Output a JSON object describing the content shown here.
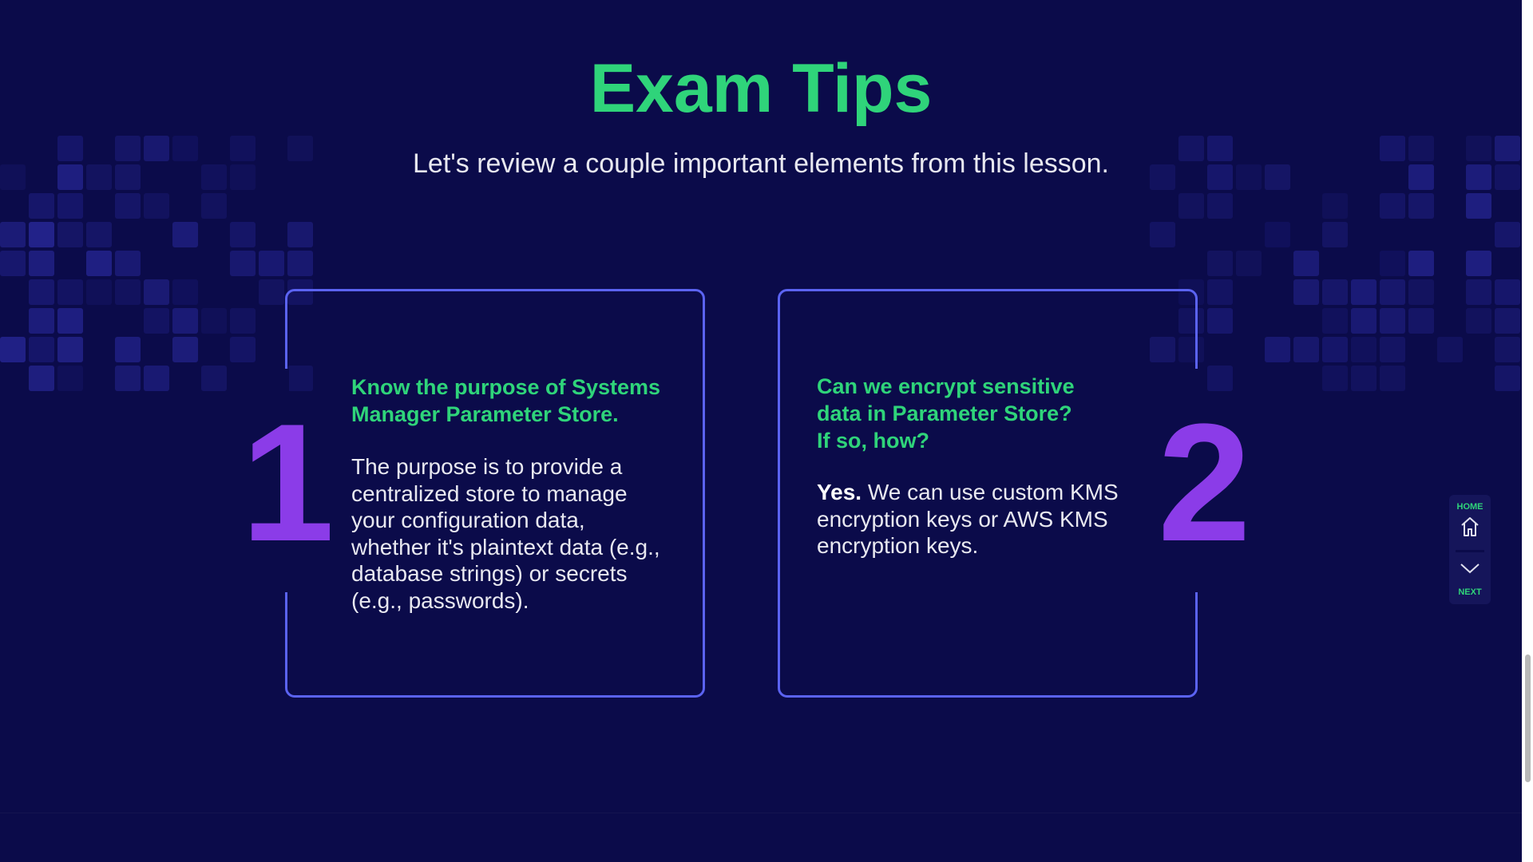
{
  "header": {
    "title": "Exam Tips",
    "subtitle": "Let's review a couple important elements from this lesson."
  },
  "cards": [
    {
      "number": "1",
      "heading": "Know the purpose of Systems Manager Parameter Store.",
      "body": "The purpose is to provide a centralized store to manage your configuration data, whether it's plaintext data (e.g., database strings) or secrets (e.g., passwords)."
    },
    {
      "number": "2",
      "heading_lines": [
        "Can we encrypt sensitive",
        "data in Parameter Store?",
        "If so, how?"
      ],
      "body_strong": "Yes.",
      "body": " We can use custom KMS encryption keys or AWS KMS encryption keys."
    }
  ],
  "nav": {
    "home_label": "HOME",
    "next_label": "NEXT",
    "home_icon": "home-icon",
    "next_icon": "chevron-down-icon"
  },
  "colors": {
    "background": "#0b0b4a",
    "accent_green": "#2fd47a",
    "number_purple": "#8b3ce8",
    "card_border": "#5b63f2"
  }
}
